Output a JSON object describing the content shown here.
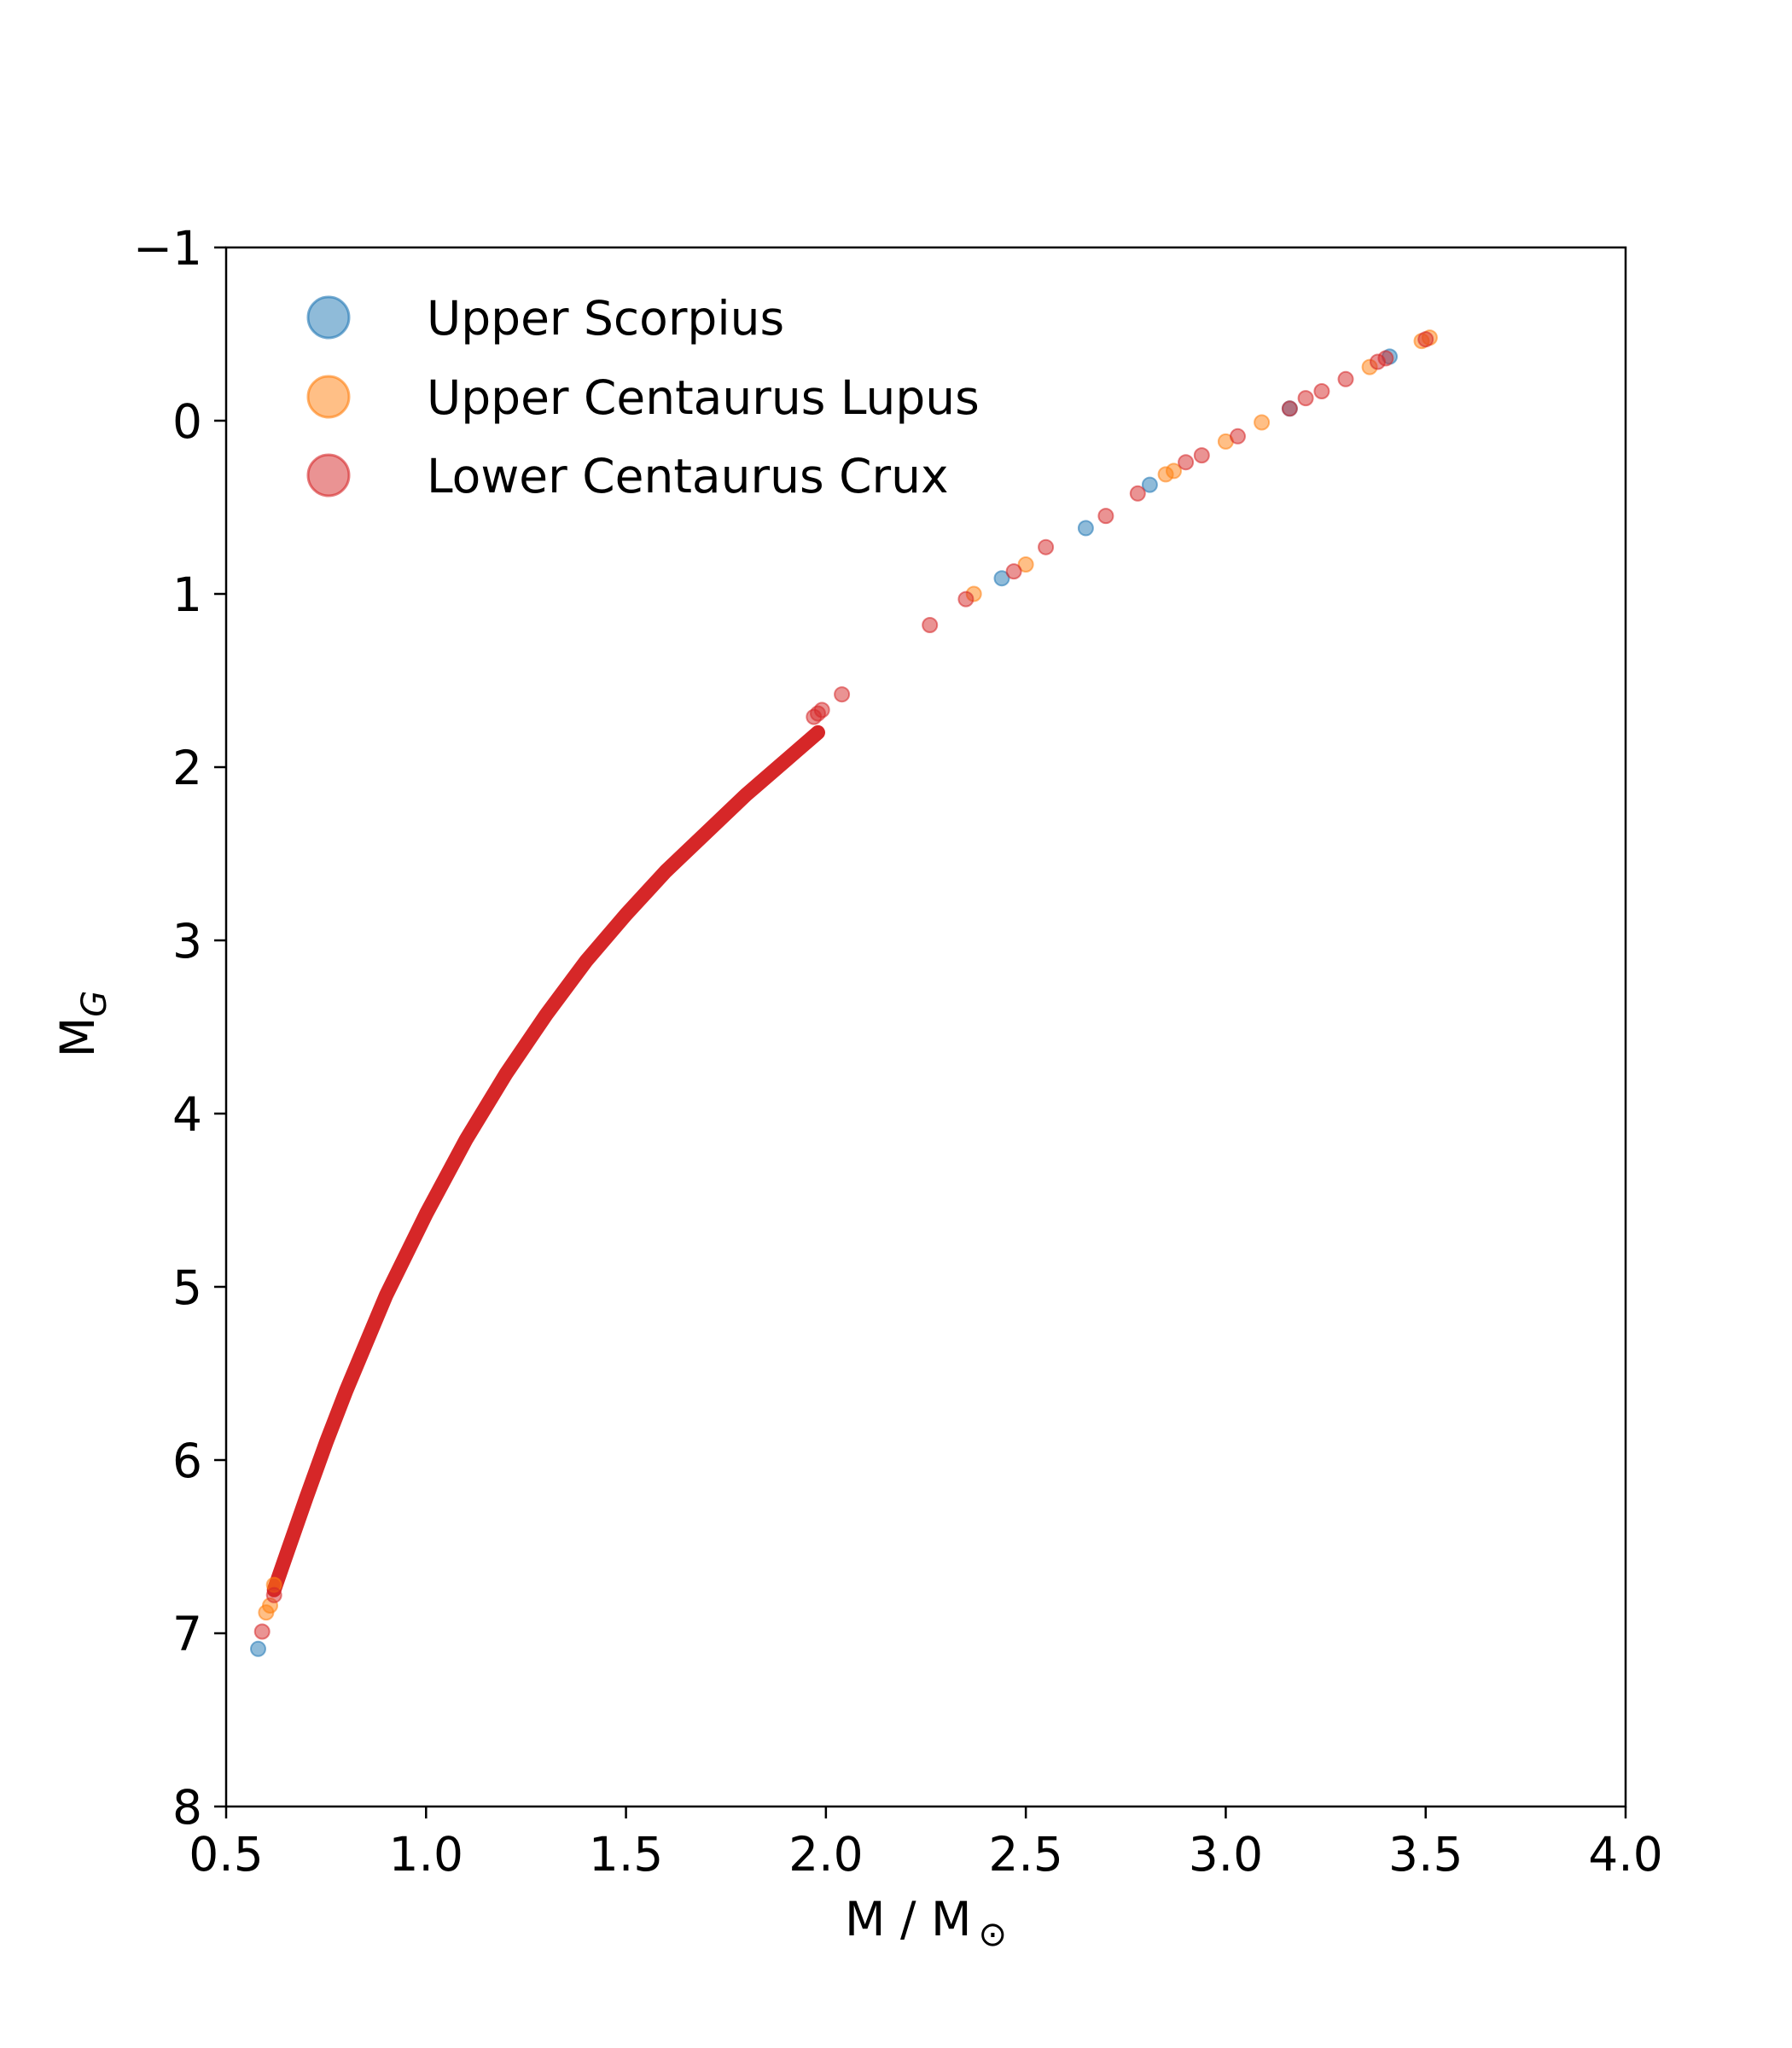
{
  "chart_data": {
    "type": "scatter",
    "title": "",
    "xlabel": "M / M",
    "xlabel_symbol": "⊙",
    "ylabel": "M",
    "ylabel_subscript": "G",
    "xlim": [
      0.5,
      4.0
    ],
    "ylim": [
      8,
      -1
    ],
    "y_inverted": true,
    "grid": false,
    "legend_placement": "top-left",
    "x_ticks": [
      "0.5",
      "1.0",
      "1.5",
      "2.0",
      "2.5",
      "3.0",
      "3.5",
      "4.0"
    ],
    "y_ticks": [
      "−1",
      "0",
      "1",
      "2",
      "3",
      "4",
      "5",
      "6",
      "7",
      "8"
    ],
    "series": [
      {
        "name": "Upper Scorpius",
        "color": "#1f77b4",
        "points": [
          [
            0.58,
            7.09
          ],
          [
            2.44,
            0.91
          ],
          [
            2.65,
            0.62
          ],
          [
            2.81,
            0.37
          ],
          [
            3.16,
            -0.07
          ],
          [
            3.41,
            -0.37
          ]
        ]
      },
      {
        "name": "Upper Centaurus Lupus",
        "color": "#ff7f0e",
        "points": [
          [
            0.6,
            6.88
          ],
          [
            0.61,
            6.84
          ],
          [
            0.62,
            6.72
          ],
          [
            2.37,
            1.0
          ],
          [
            2.5,
            0.83
          ],
          [
            2.85,
            0.31
          ],
          [
            2.87,
            0.29
          ],
          [
            3.0,
            0.12
          ],
          [
            3.09,
            0.01
          ],
          [
            3.36,
            -0.31
          ],
          [
            3.49,
            -0.46
          ],
          [
            3.51,
            -0.48
          ]
        ]
      },
      {
        "name": "Lower Centaurus Crux",
        "color": "#d62728",
        "points": [
          [
            0.59,
            6.99
          ],
          [
            0.62,
            6.78
          ],
          [
            1.97,
            1.71
          ],
          [
            1.98,
            1.69
          ],
          [
            1.99,
            1.67
          ],
          [
            2.04,
            1.58
          ],
          [
            2.26,
            1.18
          ],
          [
            2.35,
            1.03
          ],
          [
            2.47,
            0.87
          ],
          [
            2.55,
            0.73
          ],
          [
            2.7,
            0.55
          ],
          [
            2.78,
            0.42
          ],
          [
            2.9,
            0.24
          ],
          [
            2.94,
            0.2
          ],
          [
            3.03,
            0.09
          ],
          [
            3.16,
            -0.07
          ],
          [
            3.2,
            -0.13
          ],
          [
            3.24,
            -0.17
          ],
          [
            3.3,
            -0.24
          ],
          [
            3.38,
            -0.34
          ],
          [
            3.4,
            -0.36
          ],
          [
            3.5,
            -0.47
          ]
        ]
      }
    ],
    "main_sequence": {
      "color": "#d62728",
      "x": [
        0.62,
        0.65,
        0.7,
        0.75,
        0.8,
        0.9,
        1.0,
        1.1,
        1.2,
        1.3,
        1.4,
        1.5,
        1.6,
        1.7,
        1.8,
        1.9,
        1.98
      ],
      "y": [
        6.75,
        6.55,
        6.22,
        5.9,
        5.6,
        5.05,
        4.58,
        4.15,
        3.77,
        3.43,
        3.12,
        2.85,
        2.6,
        2.38,
        2.16,
        1.96,
        1.8
      ]
    }
  }
}
